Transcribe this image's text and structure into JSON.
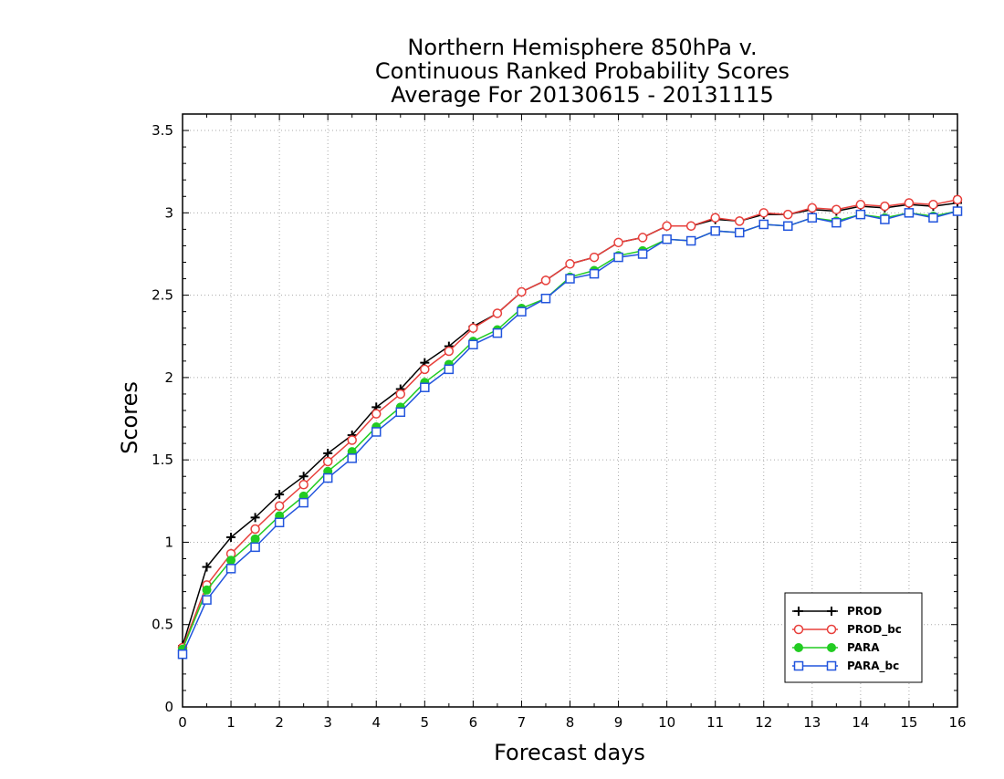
{
  "chart_data": {
    "type": "line",
    "title_lines": [
      "Northern Hemisphere 850hPa v.",
      "Continuous Ranked Probability Scores",
      "Average For 20130615 - 20131115"
    ],
    "xlabel": "Forecast days",
    "ylabel": "Scores",
    "xlim": [
      0,
      16
    ],
    "ylim": [
      0,
      3.6
    ],
    "x_ticks": [
      "0",
      "1",
      "2",
      "3",
      "4",
      "5",
      "6",
      "7",
      "8",
      "9",
      "10",
      "11",
      "12",
      "13",
      "14",
      "15",
      "16"
    ],
    "y_ticks": [
      "0",
      "0.5",
      "1",
      "1.5",
      "2",
      "2.5",
      "3",
      "3.5"
    ],
    "grid": true,
    "legend_position": "bottom-right",
    "x": [
      0,
      0.5,
      1,
      1.5,
      2,
      2.5,
      3,
      3.5,
      4,
      4.5,
      5,
      5.5,
      6,
      6.5,
      7,
      7.5,
      8,
      8.5,
      9,
      9.5,
      10,
      10.5,
      11,
      11.5,
      12,
      12.5,
      13,
      13.5,
      14,
      14.5,
      15,
      15.5,
      16
    ],
    "series": [
      {
        "name": "PROD",
        "color": "#000000",
        "marker": "plus",
        "values": [
          0.37,
          0.85,
          1.03,
          1.15,
          1.29,
          1.4,
          1.54,
          1.65,
          1.82,
          1.93,
          2.09,
          2.19,
          2.31,
          2.39,
          2.52,
          2.59,
          2.69,
          2.73,
          2.82,
          2.85,
          2.92,
          2.92,
          2.96,
          2.95,
          2.99,
          2.99,
          3.02,
          3.01,
          3.04,
          3.03,
          3.05,
          3.04,
          3.06
        ]
      },
      {
        "name": "PROD_bc",
        "color": "#e8403c",
        "marker": "circle-open",
        "values": [
          0.36,
          0.74,
          0.93,
          1.08,
          1.22,
          1.35,
          1.49,
          1.62,
          1.78,
          1.9,
          2.05,
          2.16,
          2.3,
          2.39,
          2.52,
          2.59,
          2.69,
          2.73,
          2.82,
          2.85,
          2.92,
          2.92,
          2.97,
          2.95,
          3.0,
          2.99,
          3.03,
          3.02,
          3.05,
          3.04,
          3.06,
          3.05,
          3.08
        ]
      },
      {
        "name": "PARA",
        "color": "#22cc22",
        "marker": "circle-filled",
        "values": [
          0.35,
          0.71,
          0.89,
          1.02,
          1.16,
          1.28,
          1.43,
          1.55,
          1.7,
          1.82,
          1.97,
          2.08,
          2.22,
          2.29,
          2.42,
          2.48,
          2.61,
          2.65,
          2.74,
          2.77,
          2.84,
          2.83,
          2.89,
          2.88,
          2.93,
          2.92,
          2.97,
          2.95,
          2.99,
          2.97,
          3.0,
          2.98,
          3.01
        ]
      },
      {
        "name": "PARA_bc",
        "color": "#2255dd",
        "marker": "square-open",
        "values": [
          0.32,
          0.65,
          0.84,
          0.97,
          1.12,
          1.24,
          1.39,
          1.51,
          1.67,
          1.79,
          1.94,
          2.05,
          2.2,
          2.27,
          2.4,
          2.48,
          2.6,
          2.63,
          2.73,
          2.75,
          2.84,
          2.83,
          2.89,
          2.88,
          2.93,
          2.92,
          2.97,
          2.94,
          2.99,
          2.96,
          3.0,
          2.97,
          3.01
        ]
      }
    ]
  }
}
